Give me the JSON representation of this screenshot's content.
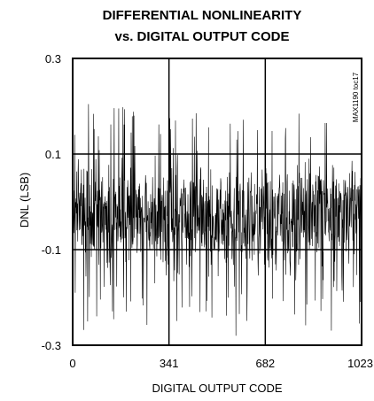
{
  "chart_data": {
    "type": "line",
    "title_lines": [
      "DIFFERENTIAL NONLINEARITY",
      "vs. DIGITAL OUTPUT CODE"
    ],
    "xlabel": "DIGITAL OUTPUT CODE",
    "ylabel": "DNL (LSB)",
    "xlim": [
      0,
      1023
    ],
    "ylim": [
      -0.3,
      0.3
    ],
    "xticks": [
      0,
      341,
      682,
      1023
    ],
    "xtick_labels": [
      "0",
      "341",
      "682",
      "1023"
    ],
    "yticks": [
      0.3,
      0.1,
      -0.1,
      -0.3
    ],
    "ytick_labels": [
      "0.3",
      "0.1",
      "-0.1",
      "-0.3"
    ],
    "grid": true,
    "watermark": "MAX1190 toc17",
    "series": [
      {
        "color": "#000000",
        "sampled_points": 1024,
        "envelope_note_values": {
          "center": -0.03,
          "typical_min": -0.15,
          "typical_max": 0.1,
          "peak_max": 0.21,
          "peak_min": -0.29
        }
      }
    ]
  }
}
